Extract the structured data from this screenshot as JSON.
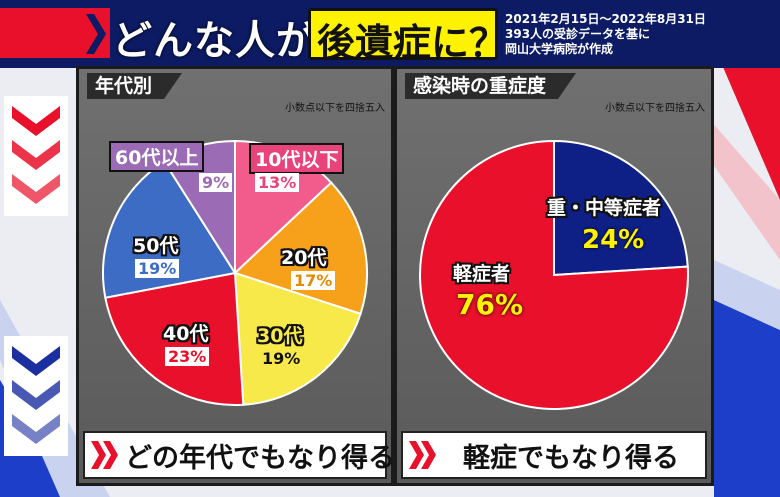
{
  "header": {
    "title_pre": "どんな人が",
    "title_box": "後遺症に？",
    "info_lines": [
      "2021年2月15日〜2022年8月31日",
      "393人の受診データを基に",
      "岡山大学病院が作成"
    ]
  },
  "left_panel": {
    "tab": "年代別",
    "note": "小数点以下を四捨五入",
    "footer": "どの年代でもなり得る"
  },
  "right_panel": {
    "tab": "感染時の重症度",
    "note": "小数点以下を四捨五入",
    "footer": "軽症でもなり得る"
  },
  "colors": {
    "header_bg": "#0c1b63",
    "accent_red": "#e8102a",
    "accent_yellow": "#fff200"
  },
  "chart_data": [
    {
      "type": "pie",
      "title": "年代別",
      "categories": [
        "10代以下",
        "20代",
        "30代",
        "40代",
        "50代",
        "60代以上"
      ],
      "values": [
        13,
        17,
        19,
        23,
        19,
        9
      ],
      "value_labels": [
        "13%",
        "17%",
        "19%",
        "23%",
        "19%",
        "9%"
      ],
      "colors": [
        "#f25c8c",
        "#f7a01a",
        "#f7e94a",
        "#e8102a",
        "#3d6cc4",
        "#9b6bb5"
      ]
    },
    {
      "type": "pie",
      "title": "感染時の重症度",
      "categories": [
        "重・中等症者",
        "軽症者"
      ],
      "values": [
        24,
        76
      ],
      "value_labels": [
        "24%",
        "76%"
      ],
      "colors": [
        "#0e1f86",
        "#e8102a"
      ]
    }
  ]
}
